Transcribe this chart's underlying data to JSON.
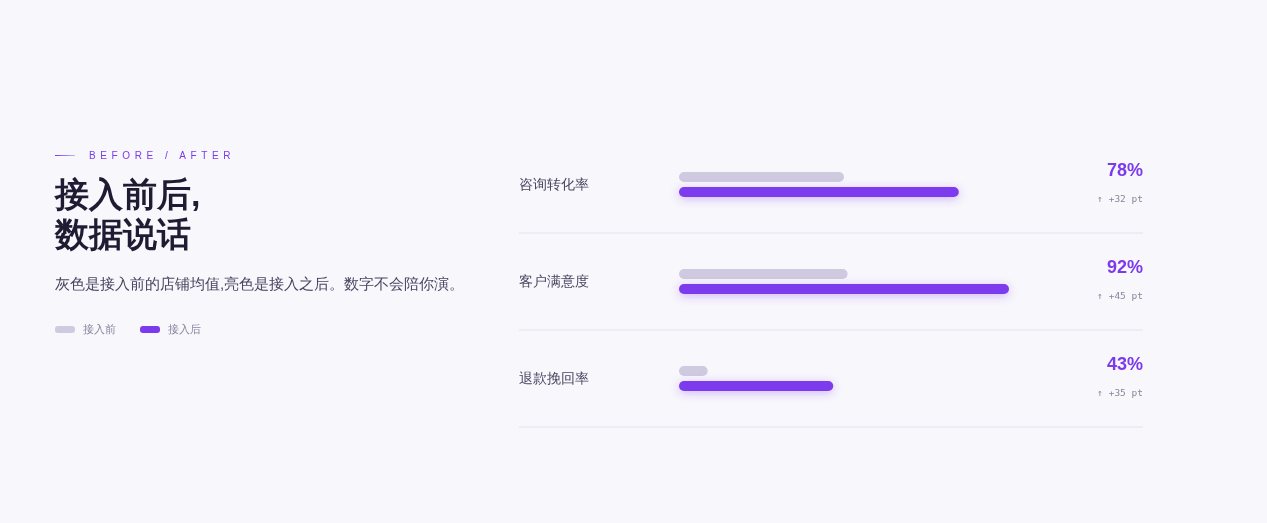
{
  "chart_data": {
    "type": "bar",
    "orientation": "horizontal",
    "title": "接入前后,\n数据说话",
    "subtitle": "灰色是接入前的店铺均值,亮色是接入之后。数字不会陪你演。",
    "categories": [
      "咨询转化率",
      "客户满意度",
      "退款挽回率"
    ],
    "series": [
      {
        "name": "接入前",
        "color": "#cfcadf",
        "values": [
          46,
          47,
          8
        ]
      },
      {
        "name": "接入后",
        "color": "#7c3aed",
        "values": [
          78,
          92,
          43
        ],
        "value_labels": [
          "78%",
          "92%",
          "43%"
        ]
      }
    ],
    "annotations": [
      "BEFORE / AFTER",
      "↑ +32 pt",
      "↑ +45 pt",
      "↑ +35 pt"
    ],
    "legend": "left",
    "grid": "y"
  }
}
